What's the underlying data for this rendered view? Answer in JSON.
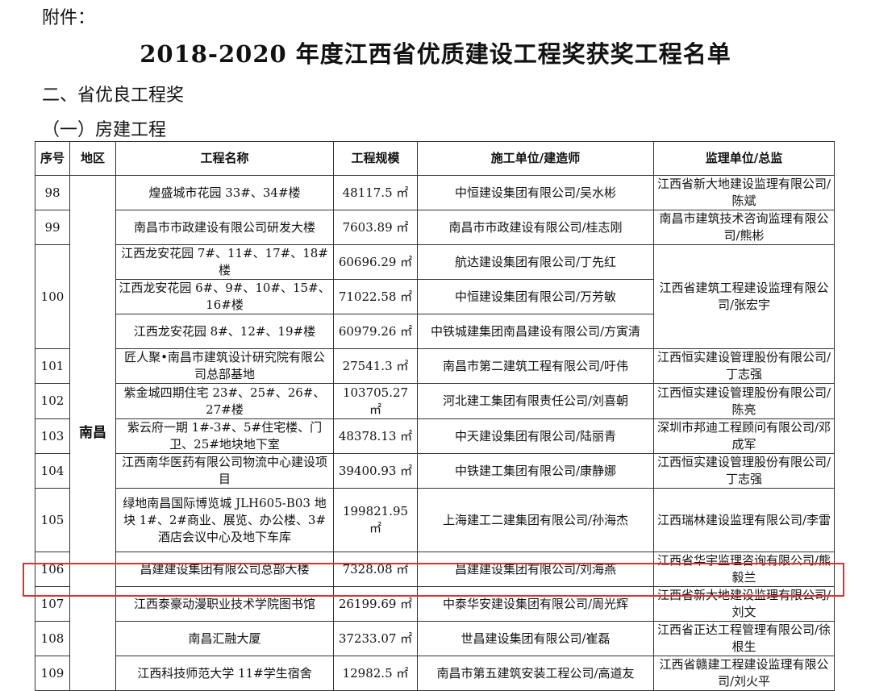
{
  "attachment_label": "附件：",
  "title": "2018-2020 年度江西省优质建设工程奖获奖工程名单",
  "section": "二、省优良工程奖",
  "subsection": "（一）房建工程",
  "headers": {
    "no": "序号",
    "region": "地区",
    "name": "工程名称",
    "scale": "工程规模",
    "builder": "施工单位/建造师",
    "supervisor": "监理单位/总监"
  },
  "region": "南昌",
  "highlight_color": "#e0302d",
  "highlighted_no": "107",
  "groups": [
    {
      "no": "98",
      "supervisor": "江西省新大地建设监理有限公司/陈斌",
      "projects": [
        {
          "name": "煌盛城市花园 33#、34#楼",
          "scale": "48117.5 ㎡",
          "builder": "中恒建设集团有限公司/吴水彬"
        }
      ]
    },
    {
      "no": "99",
      "supervisor": "南昌市建筑技术咨询监理有限公司/熊彬",
      "projects": [
        {
          "name": "南昌市市政建设有限公司研发大楼",
          "scale": "7603.89 ㎡",
          "builder": "南昌市市政建设有限公司/桂志刚"
        }
      ]
    },
    {
      "no": "100",
      "supervisor": "江西省建筑工程建设监理有限公司/张宏宇",
      "projects": [
        {
          "name": "江西龙安花园 7#、11#、17#、18#楼",
          "scale": "60696.29 ㎡",
          "builder": "航达建设集团有限公司/丁先红"
        },
        {
          "name": "江西龙安花园 6#、9#、10#、15#、16#楼",
          "scale": "71022.58 ㎡",
          "builder": "中恒建设集团有限公司/万芳敏"
        },
        {
          "name": "江西龙安花园 8#、12#、19#楼",
          "scale": "60979.26 ㎡",
          "builder": "中铁城建集团南昌建设有限公司/方寅清"
        }
      ]
    },
    {
      "no": "101",
      "supervisor": "江西恒实建设管理股份有限公司/丁志强",
      "projects": [
        {
          "name": "匠人聚•南昌市建筑设计研究院有限公司总部基地",
          "scale": "27541.3 ㎡",
          "builder": "南昌市第二建筑工程有限公司/吁伟"
        }
      ]
    },
    {
      "no": "102",
      "supervisor": "江西恒实建设管理股份有限公司/陈亮",
      "projects": [
        {
          "name": "紫金城四期住宅 23#、25#、26#、27#楼",
          "scale": "103705.27 ㎡",
          "builder": "河北建工集团有限责任公司/刘喜朝"
        }
      ]
    },
    {
      "no": "103",
      "supervisor": "深圳市邦迪工程顾问有限公司/邓成军",
      "projects": [
        {
          "name": "紫云府一期 1#-3#、5#住宅楼、门卫、25#地块地下室",
          "scale": "48378.13 ㎡",
          "builder": "中天建设集团有限公司/陆丽青"
        }
      ]
    },
    {
      "no": "104",
      "supervisor": "江西恒实建设管理股份有限公司/丁志强",
      "projects": [
        {
          "name": "江西南华医药有限公司物流中心建设项目",
          "scale": "39400.93 ㎡",
          "builder": "中铁建工集团有限公司/康静娜"
        }
      ]
    },
    {
      "no": "105",
      "supervisor": "江西瑞林建设监理有限公司/李雷",
      "projects": [
        {
          "name": "绿地南昌国际博览城 JLH605-B03 地块 1#、2#商业、展览、办公楼、3#酒店会议中心及地下车库",
          "scale": "199821.95 ㎡",
          "builder": "上海建工二建集团有限公司/孙海杰"
        }
      ]
    },
    {
      "no": "106",
      "supervisor": "江西省华宇监理咨询有限公司/熊毅兰",
      "projects": [
        {
          "name": "昌建建设集团有限公司总部大楼",
          "scale": "7328.08 ㎡",
          "builder": "昌建建设集团有限公司/刘海燕"
        }
      ]
    },
    {
      "no": "107",
      "supervisor": "江西省新大地建设监理有限公司/刘文",
      "projects": [
        {
          "name": "江西泰豪动漫职业技术学院图书馆",
          "scale": "26199.69 ㎡",
          "builder": "中泰华安建设集团有限公司/周光辉"
        }
      ]
    },
    {
      "no": "108",
      "supervisor": "江西省正达工程管理有限公司/徐根生",
      "projects": [
        {
          "name": "南昌汇融大厦",
          "scale": "37233.07 ㎡",
          "builder": "世昌建设集团有限公司/崔磊"
        }
      ]
    },
    {
      "no": "109",
      "supervisor": "江西省赣建工程建设监理有限公司/刘火平",
      "projects": [
        {
          "name": "江西科技师范大学 11#学生宿舍",
          "scale": "12982.5 ㎡",
          "builder": "南昌市第五建筑安装工程公司/高道友"
        }
      ]
    }
  ]
}
